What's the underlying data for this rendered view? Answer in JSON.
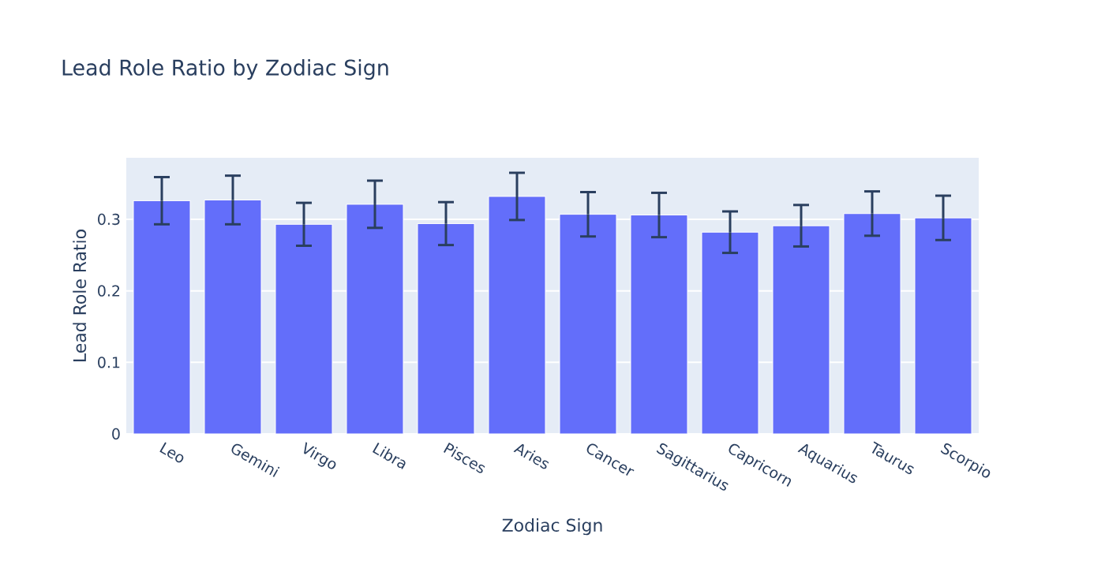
{
  "chart_data": {
    "type": "bar",
    "title": "Lead Role Ratio by Zodiac Sign",
    "xlabel": "Zodiac Sign",
    "ylabel": "Lead Role Ratio",
    "categories": [
      "Leo",
      "Gemini",
      "Virgo",
      "Libra",
      "Pisces",
      "Aries",
      "Cancer",
      "Sagittarius",
      "Capricorn",
      "Aquarius",
      "Taurus",
      "Scorpio"
    ],
    "values": [
      0.326,
      0.327,
      0.293,
      0.321,
      0.294,
      0.332,
      0.307,
      0.306,
      0.282,
      0.291,
      0.308,
      0.302
    ],
    "errors": [
      0.033,
      0.034,
      0.03,
      0.033,
      0.03,
      0.033,
      0.031,
      0.031,
      0.029,
      0.029,
      0.031,
      0.031
    ],
    "color": "#636efa",
    "ylim": [
      0,
      0.386
    ],
    "yticks": [
      0,
      0.1,
      0.2,
      0.3
    ],
    "grid": "y"
  }
}
